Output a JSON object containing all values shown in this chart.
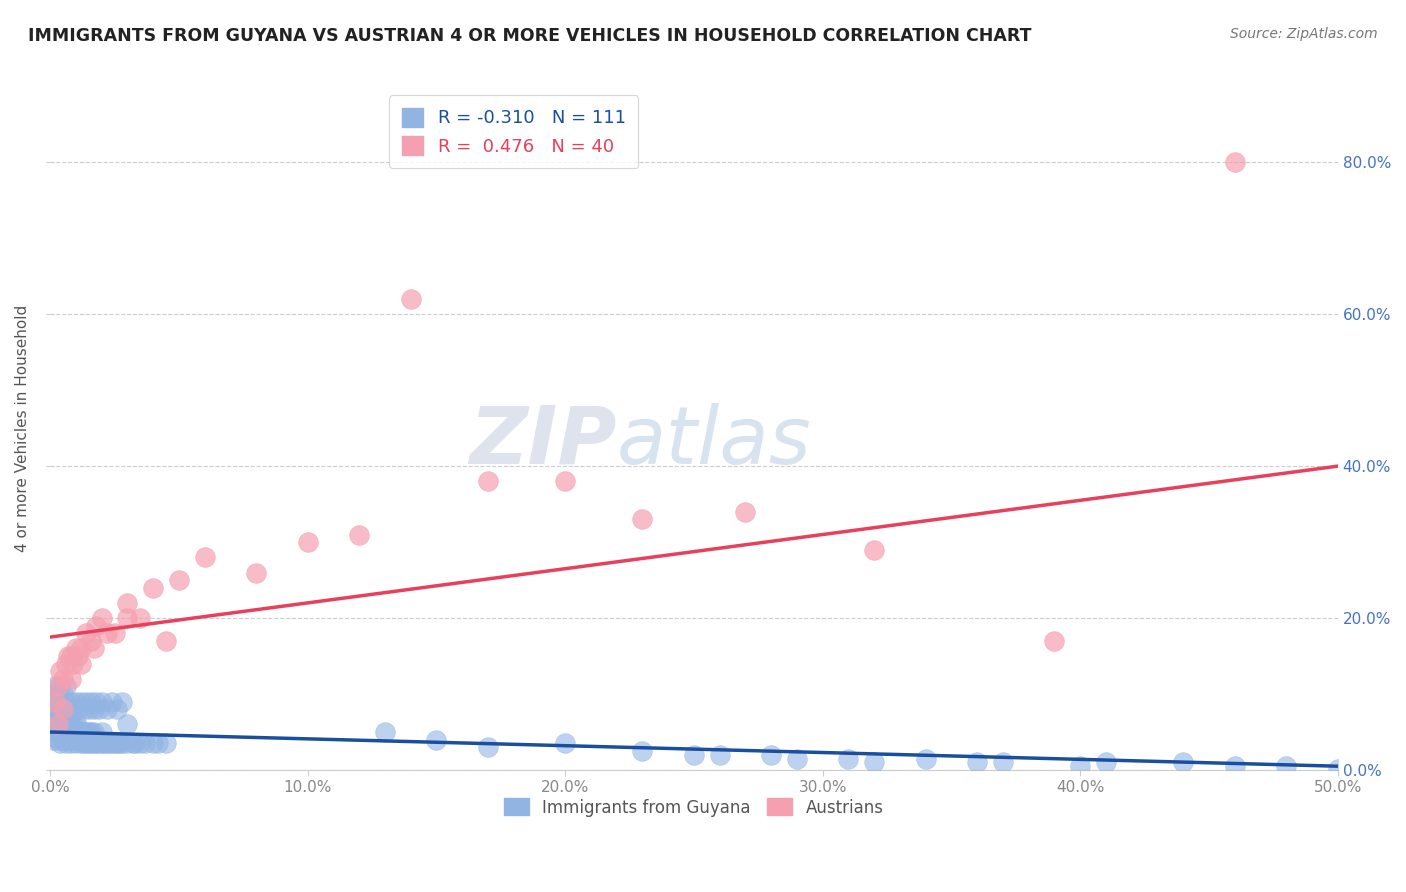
{
  "title": "IMMIGRANTS FROM GUYANA VS AUSTRIAN 4 OR MORE VEHICLES IN HOUSEHOLD CORRELATION CHART",
  "source_text": "Source: ZipAtlas.com",
  "ylabel": "4 or more Vehicles in Household",
  "xlim": [
    0.0,
    0.5
  ],
  "ylim": [
    0.0,
    0.9
  ],
  "xtick_labels": [
    "0.0%",
    "10.0%",
    "20.0%",
    "30.0%",
    "40.0%",
    "50.0%"
  ],
  "xtick_vals": [
    0.0,
    0.1,
    0.2,
    0.3,
    0.4,
    0.5
  ],
  "ytick_labels": [
    "0.0%",
    "20.0%",
    "40.0%",
    "60.0%",
    "80.0%"
  ],
  "ytick_vals": [
    0.0,
    0.2,
    0.4,
    0.6,
    0.8
  ],
  "r_blue": -0.31,
  "n_blue": 111,
  "r_pink": 0.476,
  "n_pink": 40,
  "blue_color": "#92b4e3",
  "pink_color": "#f4a0b0",
  "blue_line_color": "#1a4fa0",
  "pink_line_color": "#e8405a",
  "watermark_zip": "ZIP",
  "watermark_atlas": "atlas",
  "legend_label_blue": "Immigrants from Guyana",
  "legend_label_pink": "Austrians",
  "blue_scatter_x": [
    0.001,
    0.002,
    0.002,
    0.003,
    0.003,
    0.003,
    0.004,
    0.004,
    0.004,
    0.005,
    0.005,
    0.005,
    0.006,
    0.006,
    0.006,
    0.007,
    0.007,
    0.007,
    0.008,
    0.008,
    0.008,
    0.009,
    0.009,
    0.01,
    0.01,
    0.01,
    0.011,
    0.011,
    0.012,
    0.012,
    0.013,
    0.013,
    0.014,
    0.014,
    0.015,
    0.015,
    0.016,
    0.016,
    0.017,
    0.017,
    0.018,
    0.019,
    0.02,
    0.02,
    0.021,
    0.022,
    0.023,
    0.024,
    0.025,
    0.026,
    0.027,
    0.028,
    0.03,
    0.032,
    0.033,
    0.035,
    0.037,
    0.04,
    0.042,
    0.045,
    0.001,
    0.002,
    0.003,
    0.004,
    0.005,
    0.006,
    0.007,
    0.008,
    0.009,
    0.01,
    0.011,
    0.012,
    0.013,
    0.014,
    0.015,
    0.016,
    0.017,
    0.018,
    0.019,
    0.02,
    0.022,
    0.024,
    0.026,
    0.028,
    0.001,
    0.002,
    0.003,
    0.004,
    0.005,
    0.006,
    0.13,
    0.15,
    0.17,
    0.2,
    0.23,
    0.26,
    0.29,
    0.32,
    0.36,
    0.4,
    0.25,
    0.28,
    0.31,
    0.34,
    0.37,
    0.41,
    0.44,
    0.46,
    0.48,
    0.5,
    0.03
  ],
  "blue_scatter_y": [
    0.04,
    0.05,
    0.06,
    0.04,
    0.055,
    0.07,
    0.035,
    0.05,
    0.065,
    0.04,
    0.055,
    0.07,
    0.035,
    0.05,
    0.065,
    0.04,
    0.055,
    0.07,
    0.035,
    0.05,
    0.065,
    0.04,
    0.055,
    0.035,
    0.05,
    0.065,
    0.04,
    0.055,
    0.035,
    0.05,
    0.035,
    0.05,
    0.035,
    0.05,
    0.035,
    0.05,
    0.035,
    0.05,
    0.035,
    0.05,
    0.035,
    0.035,
    0.035,
    0.05,
    0.035,
    0.035,
    0.035,
    0.035,
    0.035,
    0.035,
    0.035,
    0.035,
    0.035,
    0.035,
    0.035,
    0.035,
    0.035,
    0.035,
    0.035,
    0.035,
    0.08,
    0.09,
    0.08,
    0.09,
    0.08,
    0.09,
    0.08,
    0.09,
    0.08,
    0.09,
    0.08,
    0.09,
    0.08,
    0.09,
    0.08,
    0.09,
    0.08,
    0.09,
    0.08,
    0.09,
    0.08,
    0.09,
    0.08,
    0.09,
    0.1,
    0.11,
    0.1,
    0.11,
    0.1,
    0.11,
    0.05,
    0.04,
    0.03,
    0.035,
    0.025,
    0.02,
    0.015,
    0.01,
    0.01,
    0.005,
    0.02,
    0.02,
    0.015,
    0.015,
    0.01,
    0.01,
    0.01,
    0.005,
    0.005,
    0.001,
    0.06
  ],
  "pink_scatter_x": [
    0.002,
    0.003,
    0.004,
    0.005,
    0.006,
    0.007,
    0.008,
    0.009,
    0.01,
    0.011,
    0.012,
    0.014,
    0.016,
    0.018,
    0.02,
    0.025,
    0.03,
    0.035,
    0.04,
    0.05,
    0.06,
    0.08,
    0.1,
    0.12,
    0.17,
    0.2,
    0.23,
    0.27,
    0.32,
    0.39,
    0.003,
    0.005,
    0.008,
    0.012,
    0.017,
    0.022,
    0.03,
    0.045,
    0.14,
    0.46
  ],
  "pink_scatter_y": [
    0.09,
    0.11,
    0.13,
    0.12,
    0.14,
    0.15,
    0.15,
    0.14,
    0.16,
    0.15,
    0.16,
    0.18,
    0.17,
    0.19,
    0.2,
    0.18,
    0.22,
    0.2,
    0.24,
    0.25,
    0.28,
    0.26,
    0.3,
    0.31,
    0.38,
    0.38,
    0.33,
    0.34,
    0.29,
    0.17,
    0.06,
    0.08,
    0.12,
    0.14,
    0.16,
    0.18,
    0.2,
    0.17,
    0.62,
    0.8
  ],
  "blue_trend_x": [
    0.0,
    0.5
  ],
  "blue_trend_y": [
    0.05,
    0.005
  ],
  "pink_trend_x": [
    0.0,
    0.5
  ],
  "pink_trend_y": [
    0.175,
    0.4
  ]
}
